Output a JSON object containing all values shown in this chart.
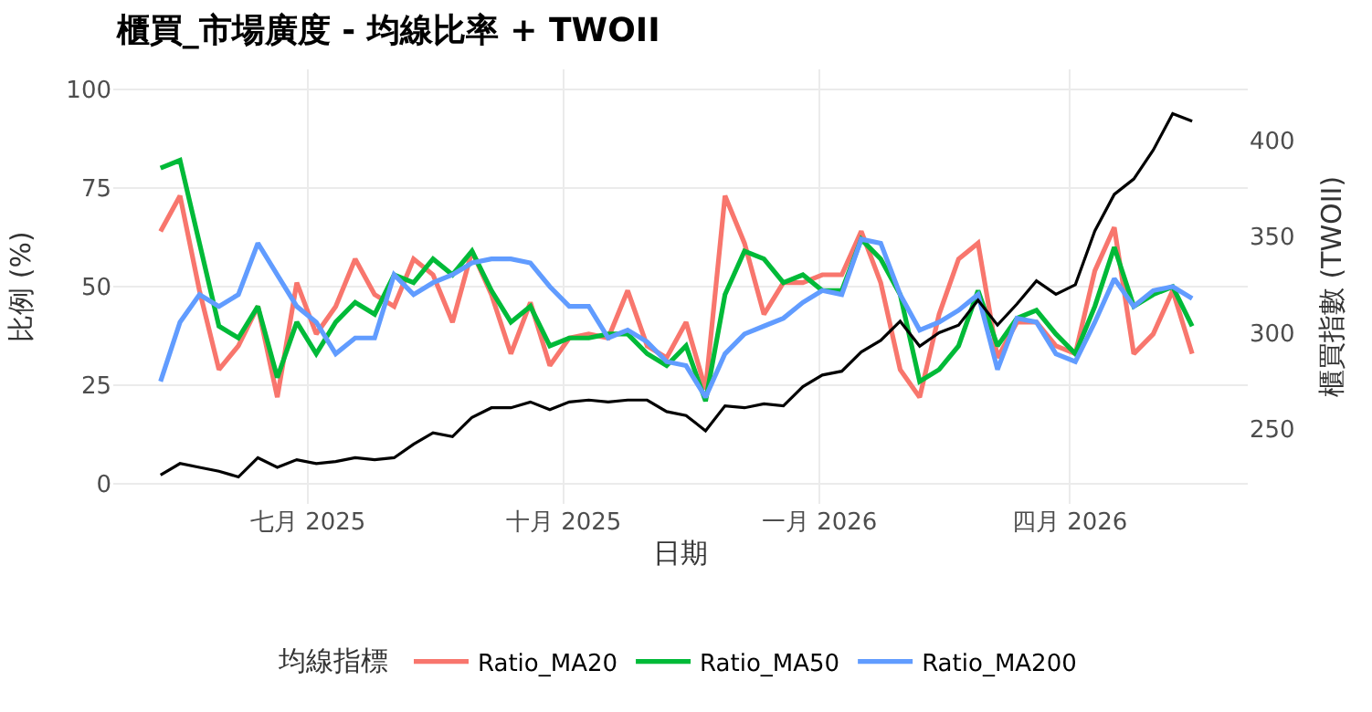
{
  "chart_data": {
    "type": "line",
    "title": "櫃買_市場廣度 - 均線比率 + TWOII",
    "xlabel": "日期",
    "ylabel": "比例 (%)",
    "y2label": "櫃買指數 (TWOII)",
    "legend_title": "均線指標",
    "x": [
      "2025-05-09",
      "2025-05-16",
      "2025-05-23",
      "2025-05-30",
      "2025-06-06",
      "2025-06-13",
      "2025-06-20",
      "2025-06-27",
      "2025-07-04",
      "2025-07-11",
      "2025-07-18",
      "2025-07-25",
      "2025-08-01",
      "2025-08-08",
      "2025-08-15",
      "2025-08-22",
      "2025-08-29",
      "2025-09-05",
      "2025-09-12",
      "2025-09-19",
      "2025-09-26",
      "2025-10-03",
      "2025-10-10",
      "2025-10-17",
      "2025-10-24",
      "2025-10-31",
      "2025-11-07",
      "2025-11-14",
      "2025-11-21",
      "2025-11-28",
      "2025-12-05",
      "2025-12-12",
      "2025-12-19",
      "2025-12-26",
      "2026-01-02",
      "2026-01-09",
      "2026-01-16",
      "2026-01-23",
      "2026-01-30",
      "2026-02-06",
      "2026-02-13",
      "2026-02-20",
      "2026-02-27",
      "2026-03-06",
      "2026-03-13",
      "2026-03-20",
      "2026-03-27",
      "2026-04-03",
      "2026-04-10",
      "2026-04-17",
      "2026-04-24",
      "2026-05-01",
      "2026-05-08",
      "2026-05-15"
    ],
    "series": [
      {
        "name": "Ratio_MA20",
        "color": "#f8766d",
        "values": [
          64,
          73,
          49,
          29,
          35,
          45,
          22,
          51,
          38,
          45,
          57,
          48,
          45,
          57,
          53,
          41,
          59,
          48,
          33,
          46,
          30,
          37,
          38,
          37,
          49,
          35,
          32,
          41,
          24,
          73,
          61,
          43,
          51,
          51,
          53,
          53,
          64,
          51,
          29,
          22,
          43,
          57,
          61,
          32,
          41,
          41,
          35,
          33,
          54,
          65,
          33,
          38,
          49,
          33
        ]
      },
      {
        "name": "Ratio_MA50",
        "color": "#00ba38",
        "values": [
          80,
          82,
          61,
          40,
          37,
          45,
          27,
          41,
          33,
          41,
          46,
          43,
          53,
          51,
          57,
          53,
          59,
          49,
          41,
          45,
          35,
          37,
          37,
          38,
          38,
          33,
          30,
          35,
          21,
          48,
          59,
          57,
          51,
          53,
          49,
          49,
          62,
          57,
          48,
          26,
          29,
          35,
          49,
          35,
          42,
          44,
          38,
          33,
          45,
          60,
          45,
          48,
          50,
          40
        ]
      },
      {
        "name": "Ratio_MA200",
        "color": "#619cff",
        "values": [
          26,
          41,
          48,
          45,
          48,
          61,
          53,
          45,
          41,
          33,
          37,
          37,
          53,
          48,
          51,
          53,
          56,
          57,
          57,
          56,
          50,
          45,
          45,
          37,
          39,
          36,
          31,
          30,
          22,
          33,
          38,
          40,
          42,
          46,
          49,
          48,
          62,
          61,
          48,
          39,
          41,
          44,
          48,
          29,
          42,
          41,
          33,
          31,
          41,
          52,
          45,
          49,
          50,
          47
        ]
      },
      {
        "color": "#000000",
        "axis": "y2",
        "values": [
          226,
          232,
          230,
          228,
          225,
          235,
          230,
          234,
          232,
          233,
          235,
          234,
          235,
          242,
          248,
          246,
          256,
          261,
          261,
          264,
          260,
          264,
          265,
          264,
          265,
          265,
          259,
          257,
          249,
          262,
          261,
          263,
          262,
          272,
          278,
          280,
          290,
          296,
          306,
          293,
          300,
          304,
          317,
          304,
          315,
          327,
          320,
          325,
          353,
          372,
          380,
          395,
          414,
          410
        ]
      }
    ],
    "xlim": [
      "2025-04-22",
      "2026-06-04"
    ],
    "xticks": [
      {
        "value": "2025-07-01",
        "label": "七月 2025"
      },
      {
        "value": "2025-10-01",
        "label": "十月 2025"
      },
      {
        "value": "2026-01-01",
        "label": "一月 2026"
      },
      {
        "value": "2026-04-01",
        "label": "四月 2026"
      }
    ],
    "ylim": [
      -5,
      105
    ],
    "yticks": [
      0,
      25,
      50,
      75,
      100
    ],
    "y2lim": [
      211,
      437
    ],
    "y2ticks": [
      250,
      300,
      350,
      400
    ],
    "grid": true,
    "legend": "bottom",
    "marker": "none",
    "line_style": "solid"
  }
}
